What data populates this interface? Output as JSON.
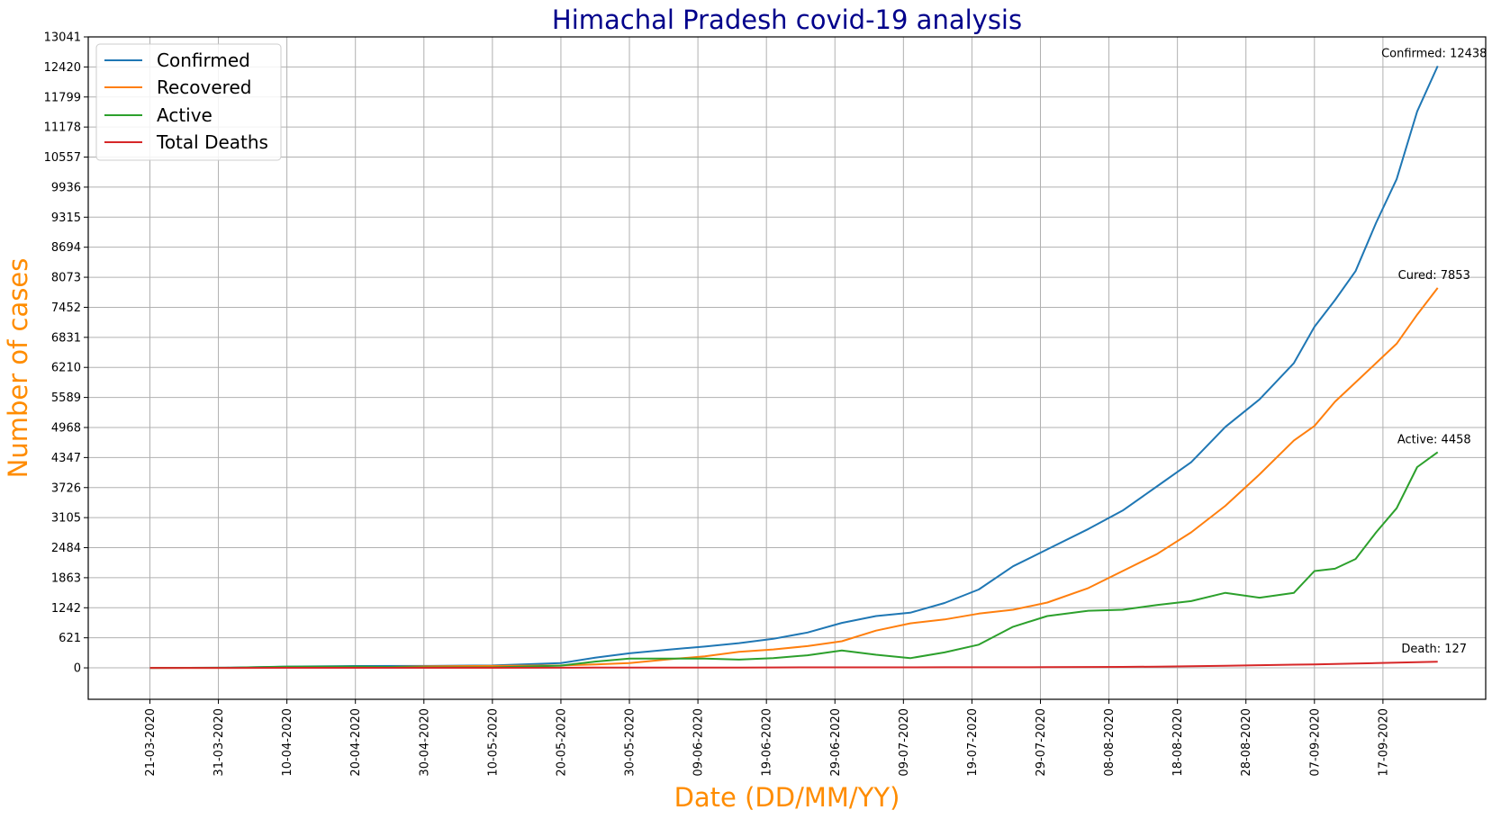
{
  "chart_data": {
    "type": "line",
    "title": "Himachal Pradesh covid-19 analysis",
    "xlabel": "Date (DD/MM/YY)",
    "ylabel": "Number of cases",
    "title_color": "#00008b",
    "label_color": "#ff8c00",
    "grid": true,
    "legend_position": "top-left",
    "xlim": [
      "2020-03-12",
      "2020-10-02"
    ],
    "ylim": [
      -650,
      13041
    ],
    "yticks": [
      0,
      621,
      1242,
      1863,
      2484,
      3105,
      3726,
      4347,
      4968,
      5589,
      6210,
      6831,
      7452,
      8073,
      8694,
      9315,
      9936,
      10557,
      11178,
      11799,
      12420,
      13041
    ],
    "xticks": [
      "21-03-2020",
      "31-03-2020",
      "10-04-2020",
      "20-04-2020",
      "30-04-2020",
      "10-05-2020",
      "20-05-2020",
      "30-05-2020",
      "09-06-2020",
      "19-06-2020",
      "29-06-2020",
      "09-07-2020",
      "19-07-2020",
      "29-07-2020",
      "08-08-2020",
      "18-08-2020",
      "28-08-2020",
      "07-09-2020",
      "17-09-2020"
    ],
    "x": [
      "2020-03-21",
      "2020-04-01",
      "2020-04-10",
      "2020-04-20",
      "2020-05-01",
      "2020-05-10",
      "2020-05-20",
      "2020-05-25",
      "2020-05-30",
      "2020-06-05",
      "2020-06-10",
      "2020-06-15",
      "2020-06-20",
      "2020-06-25",
      "2020-06-30",
      "2020-07-05",
      "2020-07-10",
      "2020-07-15",
      "2020-07-20",
      "2020-07-25",
      "2020-07-30",
      "2020-08-05",
      "2020-08-10",
      "2020-08-15",
      "2020-08-20",
      "2020-08-25",
      "2020-08-30",
      "2020-09-04",
      "2020-09-07",
      "2020-09-10",
      "2020-09-13",
      "2020-09-16",
      "2020-09-19",
      "2020-09-22",
      "2020-09-25"
    ],
    "series": [
      {
        "name": "Confirmed",
        "color": "#1f77b4",
        "values": [
          0,
          3,
          28,
          39,
          40,
          50,
          98,
          210,
          300,
          380,
          440,
          510,
          600,
          730,
          930,
          1070,
          1140,
          1340,
          1620,
          2100,
          2450,
          2870,
          3250,
          3750,
          4250,
          4980,
          5550,
          6300,
          7050,
          7600,
          8200,
          9200,
          10100,
          11500,
          12438
        ]
      },
      {
        "name": "Recovered",
        "color": "#ff7f0e",
        "values": [
          0,
          0,
          1,
          10,
          30,
          40,
          50,
          70,
          100,
          180,
          240,
          330,
          380,
          450,
          550,
          770,
          920,
          1000,
          1120,
          1200,
          1350,
          1650,
          2000,
          2350,
          2800,
          3350,
          4000,
          4700,
          5000,
          5500,
          5900,
          6300,
          6700,
          7300,
          7853
        ]
      },
      {
        "name": "Active",
        "color": "#2ca02c",
        "values": [
          0,
          3,
          26,
          28,
          10,
          10,
          45,
          130,
          190,
          190,
          190,
          170,
          200,
          260,
          360,
          270,
          200,
          320,
          480,
          850,
          1070,
          1180,
          1200,
          1300,
          1380,
          1550,
          1450,
          1550,
          2000,
          2050,
          2250,
          2800,
          3300,
          4150,
          4458
        ]
      },
      {
        "name": "Total Deaths",
        "color": "#d62728",
        "values": [
          0,
          0,
          1,
          1,
          1,
          1,
          3,
          5,
          5,
          5,
          6,
          7,
          8,
          10,
          10,
          11,
          11,
          12,
          12,
          13,
          14,
          17,
          20,
          25,
          35,
          42,
          55,
          67,
          72,
          80,
          88,
          98,
          108,
          118,
          127
        ]
      }
    ],
    "annotations": [
      {
        "text": "Confirmed: 12438",
        "x": "2020-09-25",
        "y": 12438,
        "series": 0
      },
      {
        "text": "Cured: 7853",
        "x": "2020-09-25",
        "y": 7853,
        "series": 1
      },
      {
        "text": "Active: 4458",
        "x": "2020-09-25",
        "y": 4458,
        "series": 2
      },
      {
        "text": "Death: 127",
        "x": "2020-09-25",
        "y": 127,
        "series": 3
      }
    ]
  }
}
